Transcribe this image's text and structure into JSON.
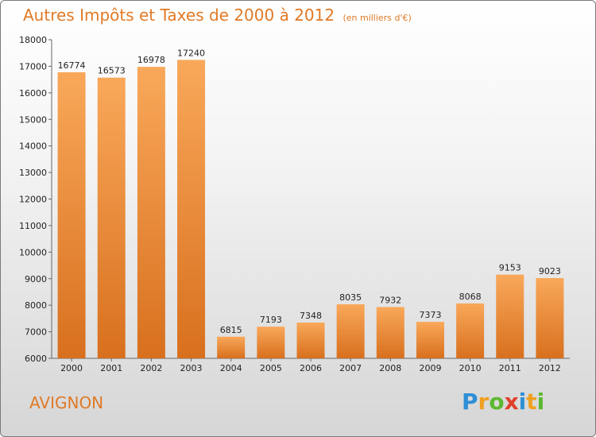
{
  "header": {
    "title": "Autres Impôts et Taxes de 2000 à 2012",
    "unit_note": "(en milliers d'€)"
  },
  "footer": {
    "city": "AVIGNON"
  },
  "logo": {
    "text": "Proxiti",
    "letters": [
      {
        "char": "P",
        "color": "#2e8fd6"
      },
      {
        "char": "r",
        "color": "#f0a020"
      },
      {
        "char": "o",
        "color": "#5cb830"
      },
      {
        "char": "x",
        "color": "#e0402a"
      },
      {
        "char": "i",
        "color": "#2e8fd6"
      },
      {
        "char": "t",
        "color": "#f0a020"
      },
      {
        "char": "i",
        "color": "#5cb830"
      }
    ]
  },
  "chart_data": {
    "type": "bar",
    "title": "Autres Impôts et Taxes de 2000 à 2012",
    "subtitle": "(en milliers d'€)",
    "xlabel": "",
    "ylabel": "",
    "categories": [
      "2000",
      "2001",
      "2002",
      "2003",
      "2004",
      "2005",
      "2006",
      "2007",
      "2008",
      "2009",
      "2010",
      "2011",
      "2012"
    ],
    "values": [
      16774,
      16573,
      16978,
      17240,
      6815,
      7193,
      7348,
      8035,
      7932,
      7373,
      8068,
      9153,
      9023
    ],
    "ylim": [
      6000,
      18000
    ],
    "yticks": [
      6000,
      7000,
      8000,
      9000,
      10000,
      11000,
      12000,
      13000,
      14000,
      15000,
      16000,
      17000,
      18000
    ],
    "grid": false,
    "data_labels": true,
    "bar_color_top": "#f9a85a",
    "bar_color_bottom": "#d8701e"
  }
}
